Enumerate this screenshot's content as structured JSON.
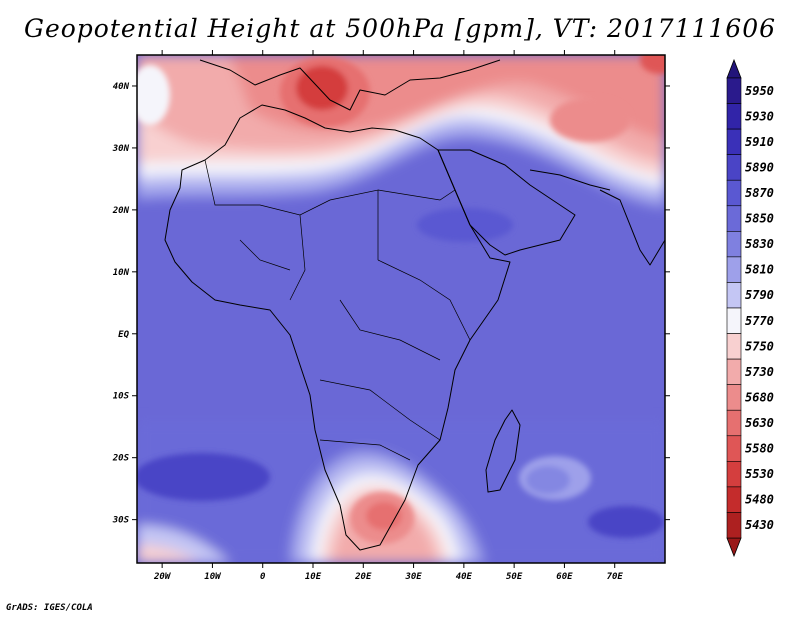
{
  "title": "Geopotential Height at 500hPa [gpm], VT: 2017111606",
  "footer": "GrADS: IGES/COLA",
  "map": {
    "lon_range": [
      -25,
      80
    ],
    "lat_range": [
      -37,
      45
    ],
    "lon_ticks": [
      {
        "value": -20,
        "label": "20W"
      },
      {
        "value": -10,
        "label": "10W"
      },
      {
        "value": 0,
        "label": "0"
      },
      {
        "value": 10,
        "label": "10E"
      },
      {
        "value": 20,
        "label": "20E"
      },
      {
        "value": 30,
        "label": "30E"
      },
      {
        "value": 40,
        "label": "40E"
      },
      {
        "value": 50,
        "label": "50E"
      },
      {
        "value": 60,
        "label": "60E"
      },
      {
        "value": 70,
        "label": "70E"
      }
    ],
    "lat_ticks": [
      {
        "value": 40,
        "label": "40N"
      },
      {
        "value": 30,
        "label": "30N"
      },
      {
        "value": 20,
        "label": "20N"
      },
      {
        "value": 10,
        "label": "10N"
      },
      {
        "value": 0,
        "label": "EQ"
      },
      {
        "value": -10,
        "label": "10S"
      },
      {
        "value": -20,
        "label": "20S"
      },
      {
        "value": -30,
        "label": "30S"
      }
    ]
  },
  "colorbar": {
    "levels": [
      {
        "value": "5950",
        "color": "#2a1a8c"
      },
      {
        "value": "5930",
        "color": "#3124a8"
      },
      {
        "value": "5910",
        "color": "#3a30b8"
      },
      {
        "value": "5890",
        "color": "#4a44c6"
      },
      {
        "value": "5870",
        "color": "#5a58d2"
      },
      {
        "value": "5850",
        "color": "#6b6ad8"
      },
      {
        "value": "5830",
        "color": "#7f80e0"
      },
      {
        "value": "5810",
        "color": "#9ea0ea"
      },
      {
        "value": "5790",
        "color": "#c4c6f4"
      },
      {
        "value": "5770",
        "color": "#f5f5fb"
      },
      {
        "value": "5750",
        "color": "#f8d0d0"
      },
      {
        "value": "5730",
        "color": "#f2abab"
      },
      {
        "value": "5680",
        "color": "#ec8c8c"
      },
      {
        "value": "5630",
        "color": "#e67070"
      },
      {
        "value": "5580",
        "color": "#df5656"
      },
      {
        "value": "5530",
        "color": "#d43e3e"
      },
      {
        "value": "5480",
        "color": "#c42c2c"
      },
      {
        "value": "5430",
        "color": "#ad2020"
      }
    ],
    "top_cap_color": "#22147a",
    "bottom_cap_color": "#9a1818"
  },
  "field": {
    "background_color": "#6a68d6",
    "features": [
      {
        "kind": "high",
        "name": "south-atlantic-high",
        "lon": -13,
        "lat": -20,
        "rx_deg": 13,
        "ry_deg": 5,
        "color": "#4a44c6"
      },
      {
        "kind": "high",
        "name": "indian-ocean-high-east",
        "lon": 73,
        "lat": -31,
        "rx_deg": 7,
        "ry_deg": 3,
        "color": "#4a44c6"
      },
      {
        "kind": "high",
        "name": "red-sea-high",
        "lon": 45,
        "lat": 17,
        "rx_deg": 9,
        "ry_deg": 3,
        "color": "#5a58d2"
      },
      {
        "kind": "high",
        "name": "madagascar-high",
        "lon": 58,
        "lat": -24,
        "rx_deg": 6,
        "ry_deg": 4,
        "color": "#9ea0ea"
      },
      {
        "kind": "trough",
        "name": "mediterranean-trough",
        "lon": 16,
        "lat": 42,
        "color": "#df5656"
      },
      {
        "kind": "trough",
        "name": "south-africa-trough",
        "lon": 27,
        "lat": -31,
        "color": "#e67070"
      },
      {
        "kind": "trough",
        "name": "arabian-trough",
        "lon": 60,
        "lat": 36,
        "color": "#ec8c8c"
      }
    ]
  }
}
